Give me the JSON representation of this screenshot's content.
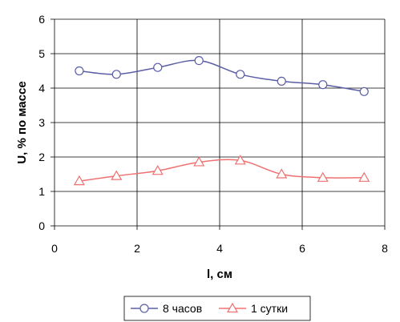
{
  "chart_data": {
    "type": "line",
    "title": "",
    "xlabel": "l, см",
    "ylabel": "U, % по массе",
    "xlim": [
      0,
      8
    ],
    "ylim": [
      0,
      6
    ],
    "xticks": [
      0,
      2,
      4,
      6,
      8
    ],
    "yticks": [
      0,
      1,
      2,
      3,
      4,
      5,
      6
    ],
    "grid": true,
    "legend_position": "bottom",
    "series": [
      {
        "name": "8 часов",
        "color": "#5b5ea6",
        "marker": "circle",
        "x": [
          0.6,
          1.5,
          2.5,
          3.5,
          4.5,
          5.5,
          6.5,
          7.5
        ],
        "y": [
          4.5,
          4.4,
          4.6,
          4.8,
          4.4,
          4.2,
          4.1,
          3.9
        ]
      },
      {
        "name": "1 сутки",
        "color": "#f07070",
        "marker": "triangle",
        "x": [
          0.6,
          1.5,
          2.5,
          3.5,
          4.5,
          5.5,
          6.5,
          7.5
        ],
        "y": [
          1.3,
          1.45,
          1.6,
          1.85,
          1.9,
          1.5,
          1.4,
          1.4
        ]
      }
    ]
  }
}
